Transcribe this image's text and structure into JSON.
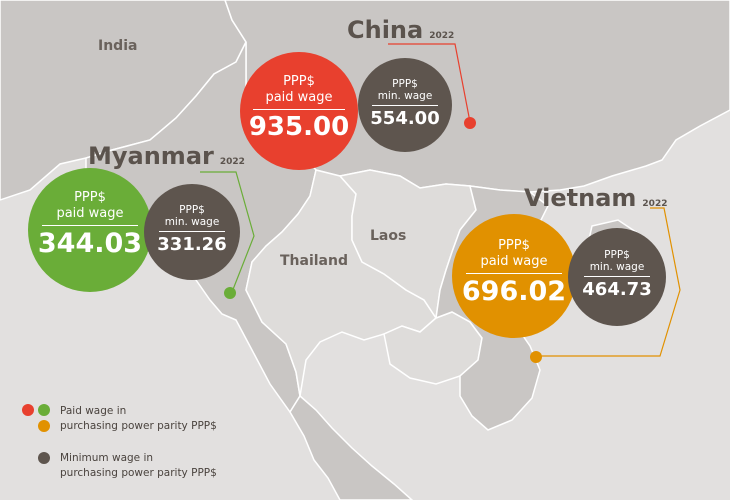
{
  "colors": {
    "china": "#e8402e",
    "myanmar": "#6aad38",
    "vietnam": "#e19100",
    "minimum": "#5e554e",
    "land": "#c9c6c4",
    "highlight": "#dedcda",
    "sea": "#e2e0df",
    "border": "#ffffff"
  },
  "map": {
    "labels": {
      "india": "India",
      "thailand": "Thailand",
      "laos": "Laos"
    }
  },
  "countries": {
    "china": {
      "name": "China",
      "year": "2022",
      "paid_caption": [
        "PPP$",
        "paid wage"
      ],
      "paid_value": "935.00",
      "min_caption": [
        "PPP$",
        "min. wage"
      ],
      "min_value": "554.00"
    },
    "myanmar": {
      "name": "Myanmar",
      "year": "2022",
      "paid_caption": [
        "PPP$",
        "paid wage"
      ],
      "paid_value": "344.03",
      "min_caption": [
        "PPP$",
        "min. wage"
      ],
      "min_value": "331.26"
    },
    "vietnam": {
      "name": "Vietnam",
      "year": "2022",
      "paid_caption": [
        "PPP$",
        "paid wage"
      ],
      "paid_value": "696.02",
      "min_caption": [
        "PPP$",
        "min. wage"
      ],
      "min_value": "464.73"
    }
  },
  "legend": {
    "paid": [
      "Paid wage in",
      "purchasing power parity PPP$"
    ],
    "minimum": [
      "Minimum wage in",
      "purchasing power parity PPP$"
    ]
  }
}
